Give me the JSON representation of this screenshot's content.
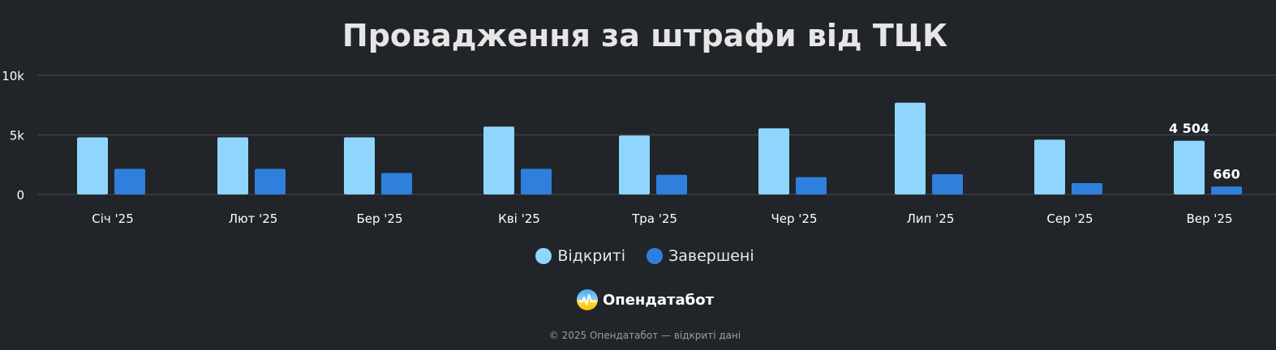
{
  "chart_data": {
    "type": "bar",
    "title": "Провадження за штрафи від ТЦК",
    "categories": [
      "Січ '25",
      "Лют '25",
      "Бер '25",
      "Кві '25",
      "Тра '25",
      "Чер '25",
      "Лип '25",
      "Сер '25",
      "Вер '25"
    ],
    "series": [
      {
        "name": "Відкриті",
        "color": "#8fd6fe",
        "values": [
          4800,
          4800,
          4800,
          5700,
          4950,
          5550,
          7700,
          4600,
          4504
        ]
      },
      {
        "name": "Завершені",
        "color": "#2f80dd",
        "values": [
          2150,
          2150,
          1800,
          2150,
          1650,
          1450,
          1700,
          950,
          660
        ]
      }
    ],
    "y_ticks": [
      {
        "value": 0,
        "label": "0"
      },
      {
        "value": 5000,
        "label": "5k"
      },
      {
        "value": 10000,
        "label": "10k"
      }
    ],
    "ylim": [
      0,
      10000
    ],
    "grid": true,
    "legend_position": "bottom",
    "data_labels": [
      {
        "series": 0,
        "index": 8,
        "text": "4 504"
      },
      {
        "series": 1,
        "index": 8,
        "text": "660"
      }
    ]
  },
  "legend": {
    "items": [
      {
        "label": "Відкриті",
        "color": "#8fd6fe"
      },
      {
        "label": "Завершені",
        "color": "#2f80dd"
      }
    ]
  },
  "brand": {
    "name": "Опендатабот"
  },
  "footer": {
    "text": "© 2025 Опендатабот — відкриті дані"
  }
}
